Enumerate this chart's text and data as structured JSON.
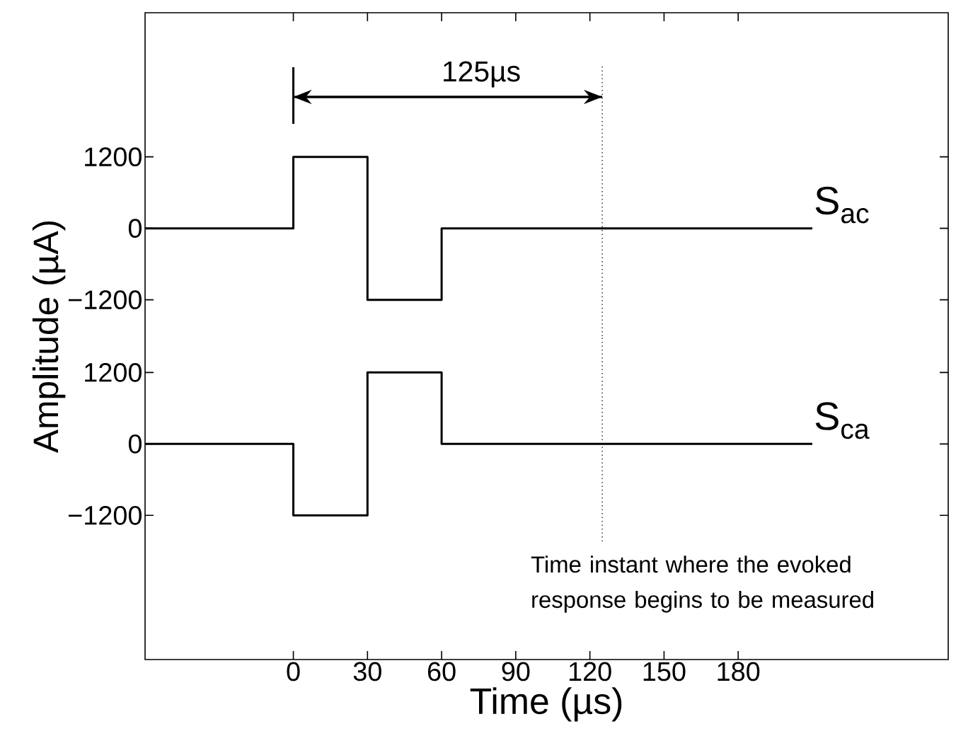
{
  "chart_data": [
    {
      "type": "step",
      "ylabel": "Amplitude (µA)",
      "x": [
        -60,
        0,
        30,
        60,
        210
      ],
      "series": [
        {
          "name": "S$_{ac}$",
          "color": "#000000",
          "values": [
            0,
            1200,
            -1200,
            0,
            0
          ]
        }
      ],
      "xlim": [
        -60,
        265
      ],
      "ylim": [
        -1810,
        3620
      ],
      "xticks": [
        0,
        30,
        60,
        90,
        120,
        150,
        180
      ],
      "yticks": [
        1200,
        0,
        {
          "value": -1200,
          "label": "−1200"
        }
      ],
      "tick_labels": "y",
      "ref_lines": [
        {
          "axis": "x",
          "value": 125,
          "line_style": "dotted",
          "color": "#000000"
        }
      ],
      "annotations": [
        "125µs"
      ]
    },
    {
      "type": "step",
      "xlabel": "Time (µs)",
      "x": [
        -60,
        0,
        30,
        60,
        210
      ],
      "series": [
        {
          "name": "S$_{ca}$",
          "color": "#000000",
          "values": [
            0,
            -1200,
            1200,
            0,
            0
          ]
        }
      ],
      "xlim": [
        -60,
        265
      ],
      "ylim": [
        -3620,
        1810
      ],
      "xticks": [
        0,
        30,
        60,
        90,
        120,
        150,
        180
      ],
      "yticks": [
        1200,
        0,
        {
          "value": -1200,
          "label": "−1200"
        }
      ],
      "ref_lines": [
        {
          "axis": "x",
          "value": 125,
          "line_style": "dotted",
          "color": "#000000"
        }
      ],
      "annotations": [
        "Time instant where the evoked response begins to be measured"
      ]
    }
  ]
}
